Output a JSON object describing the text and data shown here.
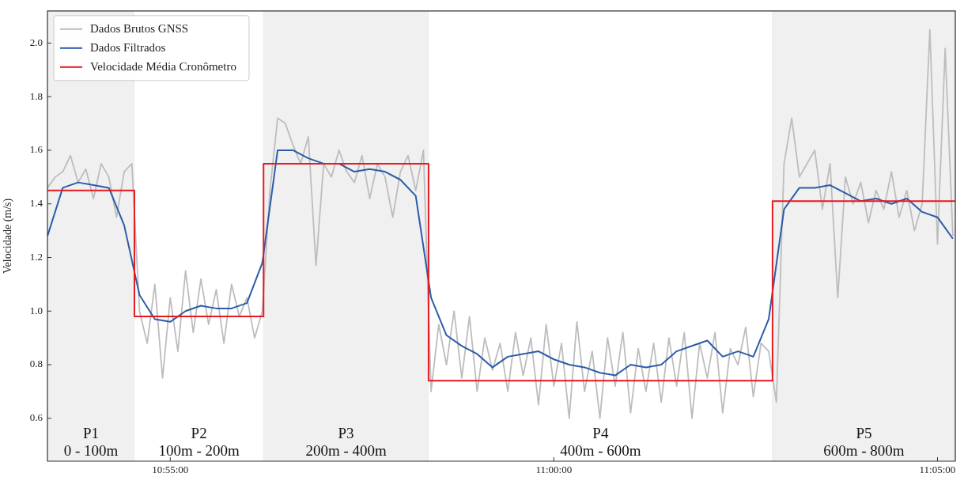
{
  "chart_data": {
    "type": "line",
    "ylabel": "Velocidade (m/s)",
    "xlim": [
      10.89,
      11.0872
    ],
    "xticks": [
      {
        "value": 10.91667,
        "label": "10:55:00"
      },
      {
        "value": 11.0,
        "label": "11:00:00"
      },
      {
        "value": 11.08333,
        "label": "11:05:00"
      }
    ],
    "ylim": [
      0.44,
      2.12
    ],
    "yticks": [
      {
        "value": 0.6,
        "label": "0.6"
      },
      {
        "value": 0.8,
        "label": "0.8"
      },
      {
        "value": 1.0,
        "label": "1.0"
      },
      {
        "value": 1.2,
        "label": "1.2"
      },
      {
        "value": 1.4,
        "label": "1.4"
      },
      {
        "value": 1.6,
        "label": "1.6"
      },
      {
        "value": 1.8,
        "label": "1.8"
      },
      {
        "value": 2.0,
        "label": "2.0"
      }
    ],
    "legend": "top left",
    "bands": [
      {
        "axis": "x",
        "from": 10.89,
        "to": 10.90889,
        "label": "P1\n0 - 100m",
        "color": "#f0f0f0"
      },
      {
        "axis": "x",
        "from": 10.90889,
        "to": 10.93694,
        "label": "P2\n100m - 200m",
        "color": "#ffffff"
      },
      {
        "axis": "x",
        "from": 10.93694,
        "to": 10.97278,
        "label": "P3\n200m - 400m",
        "color": "#f0f0f0"
      },
      {
        "axis": "x",
        "from": 10.97278,
        "to": 11.0475,
        "label": "P4\n400m - 600m",
        "color": "#ffffff"
      },
      {
        "axis": "x",
        "from": 11.0475,
        "to": 11.0872,
        "label": "P5\n600m - 800m",
        "color": "#f0f0f0"
      }
    ],
    "series": [
      {
        "name": "Dados Brutos GNSS",
        "type": "line",
        "color": "#bdbdbd",
        "x": [
          10.89,
          10.89167,
          10.89333,
          10.895,
          10.89667,
          10.89833,
          10.9,
          10.90167,
          10.90333,
          10.905,
          10.90667,
          10.90833,
          10.91,
          10.91167,
          10.91333,
          10.915,
          10.91667,
          10.91833,
          10.92,
          10.92167,
          10.92333,
          10.925,
          10.92667,
          10.92833,
          10.93,
          10.93167,
          10.93333,
          10.935,
          10.93667,
          10.93833,
          10.94,
          10.94167,
          10.94333,
          10.945,
          10.94667,
          10.94833,
          10.95,
          10.95167,
          10.95333,
          10.955,
          10.95667,
          10.95833,
          10.96,
          10.96167,
          10.96333,
          10.965,
          10.96667,
          10.96833,
          10.97,
          10.97167,
          10.97333,
          10.975,
          10.97667,
          10.97833,
          10.98,
          10.98167,
          10.98333,
          10.985,
          10.98667,
          10.98833,
          10.99,
          10.99167,
          10.99333,
          10.995,
          10.99667,
          10.99833,
          11.0,
          11.00167,
          11.00333,
          11.005,
          11.00667,
          11.00833,
          11.01,
          11.01167,
          11.01333,
          11.015,
          11.01667,
          11.01833,
          11.02,
          11.02167,
          11.02333,
          11.025,
          11.02667,
          11.02833,
          11.03,
          11.03167,
          11.03333,
          11.035,
          11.03667,
          11.03833,
          11.04,
          11.04167,
          11.04333,
          11.045,
          11.04667,
          11.04833,
          11.05,
          11.05167,
          11.05333,
          11.055,
          11.05667,
          11.05833,
          11.06,
          11.06167,
          11.06333,
          11.065,
          11.06667,
          11.06833,
          11.07,
          11.07167,
          11.07333,
          11.075,
          11.07667,
          11.07833,
          11.08,
          11.08167,
          11.08333,
          11.085,
          11.08667
        ],
        "values": [
          1.46,
          1.5,
          1.52,
          1.58,
          1.48,
          1.53,
          1.42,
          1.55,
          1.5,
          1.35,
          1.52,
          1.55,
          1.0,
          0.88,
          1.1,
          0.75,
          1.05,
          0.85,
          1.15,
          0.92,
          1.12,
          0.95,
          1.08,
          0.88,
          1.1,
          0.98,
          1.05,
          0.9,
          1.0,
          1.45,
          1.72,
          1.7,
          1.62,
          1.55,
          1.65,
          1.17,
          1.55,
          1.5,
          1.6,
          1.52,
          1.48,
          1.58,
          1.42,
          1.55,
          1.5,
          1.35,
          1.52,
          1.58,
          1.45,
          1.6,
          0.7,
          0.95,
          0.8,
          1.0,
          0.75,
          0.98,
          0.7,
          0.9,
          0.78,
          0.88,
          0.7,
          0.92,
          0.76,
          0.9,
          0.65,
          0.95,
          0.72,
          0.88,
          0.6,
          0.96,
          0.7,
          0.85,
          0.6,
          0.9,
          0.72,
          0.92,
          0.62,
          0.86,
          0.7,
          0.88,
          0.66,
          0.9,
          0.72,
          0.92,
          0.6,
          0.88,
          0.75,
          0.92,
          0.62,
          0.86,
          0.8,
          0.94,
          0.68,
          0.88,
          0.85,
          0.66,
          1.55,
          1.72,
          1.5,
          1.55,
          1.6,
          1.38,
          1.55,
          1.05,
          1.5,
          1.4,
          1.48,
          1.33,
          1.45,
          1.38,
          1.52,
          1.35,
          1.45,
          1.3,
          1.4,
          2.05,
          1.25,
          1.98,
          1.28
        ]
      },
      {
        "name": "Dados Filtrados",
        "type": "line",
        "color": "#2b5ca8",
        "x": [
          10.89,
          10.89333,
          10.89667,
          10.9,
          10.90333,
          10.90667,
          10.91,
          10.91333,
          10.91667,
          10.92,
          10.92333,
          10.92667,
          10.93,
          10.93333,
          10.93667,
          10.94,
          10.94333,
          10.94667,
          10.95,
          10.95333,
          10.95667,
          10.96,
          10.96333,
          10.96667,
          10.97,
          10.97333,
          10.97667,
          10.98,
          10.98333,
          10.98667,
          10.99,
          10.99333,
          10.99667,
          11.0,
          11.00333,
          11.00667,
          11.01,
          11.01333,
          11.01667,
          11.02,
          11.02333,
          11.02667,
          11.03,
          11.03333,
          11.03667,
          11.04,
          11.04333,
          11.04667,
          11.05,
          11.05333,
          11.05667,
          11.06,
          11.06333,
          11.06667,
          11.07,
          11.07333,
          11.07667,
          11.08,
          11.08333,
          11.08667
        ],
        "values": [
          1.28,
          1.46,
          1.48,
          1.47,
          1.46,
          1.32,
          1.06,
          0.97,
          0.96,
          1.0,
          1.02,
          1.01,
          1.01,
          1.03,
          1.18,
          1.6,
          1.6,
          1.57,
          1.55,
          1.55,
          1.52,
          1.53,
          1.52,
          1.49,
          1.43,
          1.05,
          0.91,
          0.87,
          0.84,
          0.79,
          0.83,
          0.84,
          0.85,
          0.82,
          0.8,
          0.79,
          0.77,
          0.76,
          0.8,
          0.79,
          0.8,
          0.85,
          0.87,
          0.89,
          0.83,
          0.85,
          0.83,
          0.97,
          1.38,
          1.46,
          1.46,
          1.47,
          1.44,
          1.41,
          1.42,
          1.4,
          1.42,
          1.37,
          1.35,
          1.27
        ]
      },
      {
        "name": "Velocidade Média Cronômetro",
        "type": "step",
        "color": "#e8191f",
        "x": [
          10.89,
          10.90889,
          10.93694,
          10.97278,
          11.0475,
          11.0872
        ],
        "values": [
          1.45,
          0.98,
          1.55,
          0.74,
          1.41,
          1.41
        ]
      }
    ]
  }
}
